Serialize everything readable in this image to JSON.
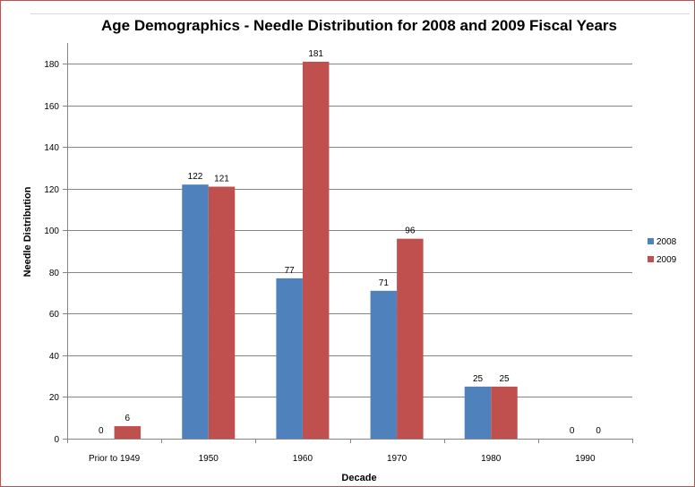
{
  "chart_data": {
    "type": "bar",
    "title": "Age Demographics - Needle Distribution for 2008 and 2009 Fiscal Years",
    "xlabel": "Decade",
    "ylabel": "Needle Distribution",
    "categories": [
      "Prior to 1949",
      "1950",
      "1960",
      "1970",
      "1980",
      "1990"
    ],
    "series": [
      {
        "name": "2008",
        "color": "#4f81bd",
        "values": [
          0,
          122,
          77,
          71,
          25,
          0
        ]
      },
      {
        "name": "2009",
        "color": "#c0504d",
        "values": [
          6,
          121,
          181,
          96,
          25,
          0
        ]
      }
    ],
    "ylim": [
      0,
      190
    ],
    "yticks": [
      0,
      20,
      40,
      60,
      80,
      100,
      120,
      140,
      160,
      180
    ],
    "grid": true,
    "legend": "right"
  }
}
